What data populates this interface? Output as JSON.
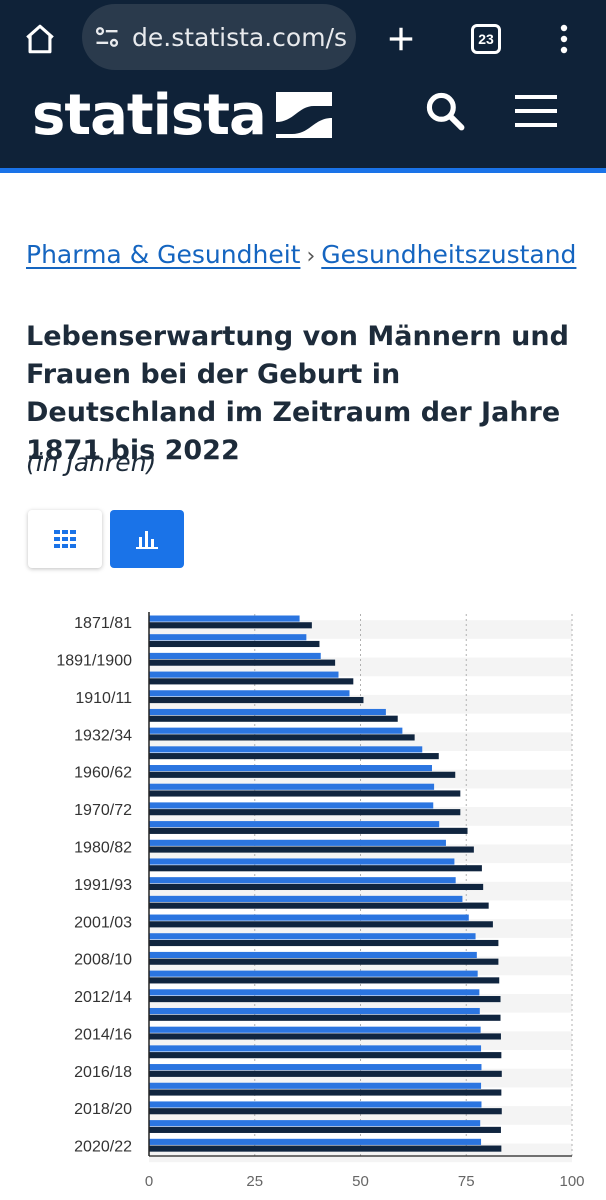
{
  "browser": {
    "url": "de.statista.com/s",
    "tab_count": "23",
    "icons": [
      "home-icon",
      "site-settings-icon",
      "plus-icon",
      "tab-switcher-icon",
      "more-vert-icon"
    ]
  },
  "site": {
    "logo_text": "statista",
    "icons": [
      "search-icon",
      "hamburger-menu-icon"
    ],
    "colors": {
      "header_bg": "#0f2238",
      "accent": "#1a73e8"
    }
  },
  "breadcrumb": {
    "items": [
      "Pharma & Gesundheit",
      "Gesundheitszustand"
    ],
    "separator": "›"
  },
  "title": "Lebenserwartung von Männern und Frauen bei der Geburt in Deutschland im Zeitraum der Jahre 1871 bis 2022",
  "subtitle": "(in Jahren)",
  "view_toggle": {
    "options": [
      "table-view-icon",
      "chart-view-icon"
    ],
    "selected": "chart-view-icon"
  },
  "chart_data": {
    "type": "bar",
    "orientation": "horizontal",
    "category_labels": [
      "1871/81",
      "",
      "1891/1900",
      "",
      "1910/11",
      "",
      "1932/34",
      "",
      "1960/62",
      "",
      "1970/72",
      "",
      "1980/82",
      "",
      "1991/93",
      "",
      "2001/03",
      "",
      "2008/10",
      "",
      "2012/14",
      "",
      "2014/16",
      "",
      "2016/18",
      "",
      "2018/20",
      "",
      "2020/22"
    ],
    "series": [
      {
        "values": [
          35.6,
          37.2,
          40.6,
          44.8,
          47.4,
          56.0,
          59.9,
          64.6,
          66.9,
          67.4,
          67.2,
          68.6,
          70.2,
          72.2,
          72.5,
          74.1,
          75.6,
          77.2,
          77.5,
          77.7,
          78.1,
          78.2,
          78.4,
          78.5,
          78.6,
          78.5,
          78.6,
          78.3,
          78.5
        ],
        "color": "#2b75e0"
      },
      {
        "values": [
          38.5,
          40.3,
          44.0,
          48.3,
          50.7,
          58.8,
          62.8,
          68.5,
          72.4,
          73.6,
          73.6,
          75.3,
          76.8,
          78.7,
          79.0,
          80.3,
          81.3,
          82.6,
          82.6,
          82.8,
          83.1,
          83.1,
          83.2,
          83.3,
          83.4,
          83.3,
          83.4,
          83.2,
          83.3
        ],
        "color": "#10253f"
      }
    ],
    "xlim": [
      0,
      100
    ],
    "xticks": [
      0,
      25,
      50,
      75,
      100
    ],
    "grid": "vertical-dotted",
    "legend": "none"
  }
}
